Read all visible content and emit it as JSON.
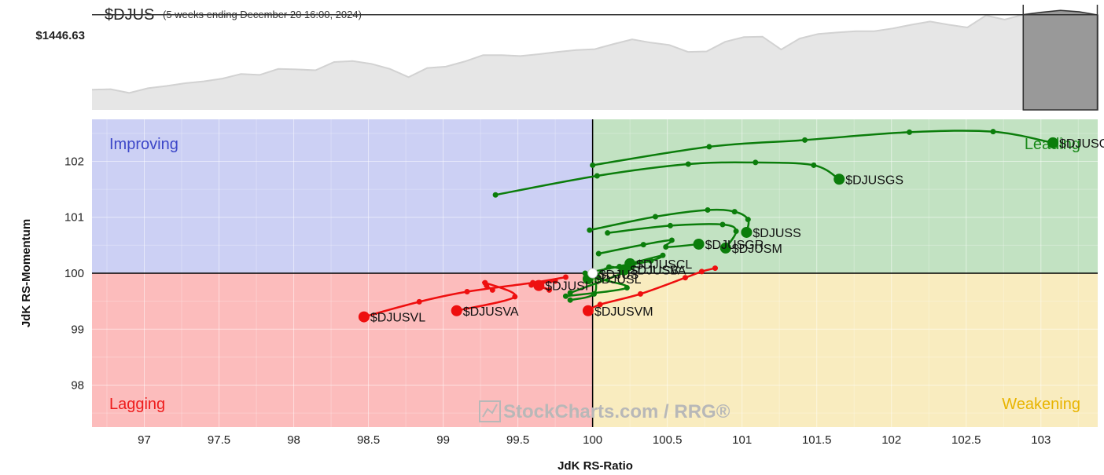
{
  "header": {
    "symbol": "$DJUS",
    "subtitle": "(5 weeks ending December 20 16:00, 2024)",
    "price_label": "$1446.63"
  },
  "branding": {
    "text": "StockCharts.com / RRG®"
  },
  "colors": {
    "improving": "#ccd0f4",
    "leading": "#c2e2c2",
    "lagging": "#fcbcbc",
    "weakening": "#f9ecbf",
    "improving_text": "#3c46c8",
    "leading_text": "#1a8a1a",
    "lagging_text": "#ee1c1c",
    "weakening_text": "#e8b400",
    "green_tail": "#0b7d0b",
    "red_tail": "#ee0f0f",
    "price_fill": "#e6e6e6",
    "price_line": "#d2d2d2",
    "price_highlight": "#999999"
  },
  "chart_data": {
    "type": "scatter",
    "xlabel": "JdK RS-Ratio",
    "ylabel": "JdK RS-Momentum",
    "xlim": [
      96.65,
      103.38
    ],
    "ylim": [
      97.25,
      102.75
    ],
    "x_ticks": [
      97,
      97.5,
      98,
      98.5,
      99,
      99.5,
      100,
      100.5,
      101,
      101.5,
      102,
      102.5,
      103
    ],
    "x_tick_labels": [
      "97",
      "97.5",
      "98",
      "98.5",
      "99",
      "99.5",
      "100",
      "100.5",
      "101",
      "101.5",
      "102",
      "102.5",
      "103"
    ],
    "y_ticks": [
      98,
      99,
      100,
      101,
      102
    ],
    "y_tick_labels": [
      "98",
      "99",
      "100",
      "101",
      "102"
    ],
    "grid": true,
    "center": [
      100,
      100
    ],
    "quadrants": {
      "improving": "Improving",
      "leading": "Leading",
      "lagging": "Lagging",
      "weakening": "Weakening"
    },
    "benchmark": {
      "name": "$DJUS",
      "x": 100,
      "y": 100
    },
    "series": [
      {
        "name": "$DJUSGV",
        "color": "green",
        "points": [
          [
            100.0,
            101.93
          ],
          [
            100.78,
            102.26
          ],
          [
            101.42,
            102.38
          ],
          [
            102.12,
            102.52
          ],
          [
            102.68,
            102.53
          ],
          [
            103.08,
            102.33
          ]
        ]
      },
      {
        "name": "$DJUSGS",
        "color": "green",
        "points": [
          [
            99.35,
            101.4
          ],
          [
            100.03,
            101.74
          ],
          [
            100.64,
            101.95
          ],
          [
            101.09,
            101.98
          ],
          [
            101.48,
            101.93
          ],
          [
            101.65,
            101.68
          ]
        ]
      },
      {
        "name": "$DJUSS",
        "color": "green",
        "points": [
          [
            99.98,
            100.77
          ],
          [
            100.42,
            101.01
          ],
          [
            100.77,
            101.13
          ],
          [
            100.95,
            101.1
          ],
          [
            101.04,
            100.96
          ],
          [
            101.03,
            100.73
          ]
        ]
      },
      {
        "name": "$DJUSM",
        "color": "green",
        "points": [
          [
            100.1,
            100.72
          ],
          [
            100.52,
            100.85
          ],
          [
            100.87,
            100.87
          ],
          [
            100.96,
            100.75
          ],
          [
            100.89,
            100.45
          ]
        ]
      },
      {
        "name": "$DJUSGR",
        "color": "green",
        "points": [
          [
            100.04,
            100.35
          ],
          [
            100.34,
            100.51
          ],
          [
            100.53,
            100.59
          ],
          [
            100.49,
            100.47
          ],
          [
            100.71,
            100.52
          ]
        ]
      },
      {
        "name": "$DJUSCL",
        "color": "green",
        "points": [
          [
            99.95,
            100.0
          ],
          [
            100.18,
            100.12
          ],
          [
            100.39,
            100.22
          ],
          [
            100.47,
            100.32
          ],
          [
            100.25,
            100.17
          ]
        ]
      },
      {
        "name": "$DJUSVA",
        "color": "green",
        "points": [
          [
            99.82,
            99.59
          ],
          [
            100.23,
            99.74
          ],
          [
            100.04,
            99.92
          ],
          [
            100.11,
            100.11
          ],
          [
            100.21,
            100.06
          ]
        ]
      },
      {
        "name": "$DJUSB",
        "color": "green",
        "points": [
          [
            99.85,
            99.65
          ],
          [
            100.22,
            100.02
          ],
          [
            100.27,
            100.13
          ],
          [
            100.21,
            100.06
          ]
        ]
      },
      {
        "name": "$DJUSL",
        "color": "green",
        "points": [
          [
            99.85,
            99.52
          ],
          [
            100.01,
            99.63
          ],
          [
            100.01,
            99.97
          ],
          [
            99.97,
            99.9
          ]
        ]
      },
      {
        "name": "$DJUSVL",
        "color": "red",
        "points": [
          [
            99.82,
            99.93
          ],
          [
            99.6,
            99.83
          ],
          [
            99.16,
            99.67
          ],
          [
            98.84,
            99.49
          ],
          [
            98.47,
            99.22
          ]
        ]
      },
      {
        "name": "$DJUSVA",
        "color": "red",
        "points": [
          [
            99.33,
            99.7
          ],
          [
            99.29,
            99.78
          ],
          [
            99.28,
            99.83
          ],
          [
            99.48,
            99.58
          ],
          [
            99.09,
            99.33
          ]
        ]
      },
      {
        "name": "$DJUSI",
        "color": "red",
        "points": [
          [
            99.75,
            99.86
          ],
          [
            99.59,
            99.79
          ],
          [
            99.63,
            99.78
          ],
          [
            99.71,
            99.7
          ],
          [
            99.64,
            99.78
          ]
        ]
      },
      {
        "name": "$DJUSVM",
        "color": "red",
        "points": [
          [
            100.82,
            100.09
          ],
          [
            100.73,
            100.03
          ],
          [
            100.62,
            99.92
          ],
          [
            100.32,
            99.63
          ],
          [
            100.05,
            99.44
          ],
          [
            99.97,
            99.33
          ]
        ]
      }
    ],
    "price_series": {
      "label": "$1446.63",
      "last_value": 1446.63,
      "values": [
        1284,
        1285,
        1277,
        1287,
        1292,
        1298,
        1302,
        1308,
        1318,
        1316,
        1329,
        1328,
        1326,
        1344,
        1346,
        1340,
        1329,
        1311,
        1331,
        1334,
        1345,
        1359,
        1359,
        1357,
        1361,
        1366,
        1370,
        1372,
        1383,
        1393,
        1386,
        1381,
        1366,
        1367,
        1388,
        1398,
        1399,
        1371,
        1395,
        1405,
        1408,
        1411,
        1411,
        1417,
        1425,
        1432,
        1425,
        1419,
        1445,
        1436,
        1447,
        1452,
        1456,
        1453,
        1446
      ]
    }
  }
}
